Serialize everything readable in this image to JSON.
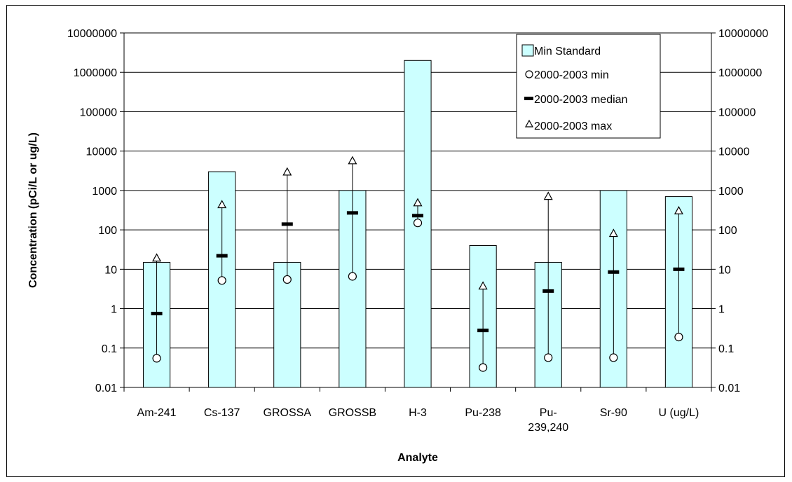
{
  "chart_data": {
    "type": "bar",
    "title": "",
    "xlabel": "Analyte",
    "ylabel": "Concentration (pCi/L or ug/L)",
    "y_scale": "log",
    "ylim": [
      0.01,
      10000000
    ],
    "y_ticks": [
      "0.01",
      "0.1",
      "1",
      "10",
      "100",
      "1000",
      "10000",
      "100000",
      "1000000",
      "10000000"
    ],
    "grid": "horizontal",
    "legend_position": "top-right",
    "categories": [
      [
        "Am-241"
      ],
      [
        "Cs-137"
      ],
      [
        "GROSSA"
      ],
      [
        "GROSSB"
      ],
      [
        "H-3"
      ],
      [
        "Pu-238"
      ],
      [
        "Pu-",
        "239,240"
      ],
      [
        "Sr-90"
      ],
      [
        "U (ug/L)"
      ]
    ],
    "series": [
      {
        "name": "Min Standard",
        "kind": "bar",
        "color": "#CCFFFF",
        "values": [
          15,
          3000,
          15,
          1000,
          2000000,
          40,
          15,
          1000,
          700
        ]
      },
      {
        "name": "2000-2003 min",
        "kind": "circle",
        "values": [
          0.055,
          5.2,
          5.5,
          6.6,
          150,
          0.032,
          0.057,
          0.057,
          0.19
        ]
      },
      {
        "name": "2000-2003 median",
        "kind": "dash",
        "values": [
          0.75,
          22,
          140,
          270,
          230,
          0.28,
          2.8,
          8.5,
          10
        ]
      },
      {
        "name": "2000-2003 max",
        "kind": "triangle",
        "values": [
          19,
          430,
          2900,
          5600,
          480,
          3.7,
          700,
          80,
          300
        ]
      }
    ]
  }
}
